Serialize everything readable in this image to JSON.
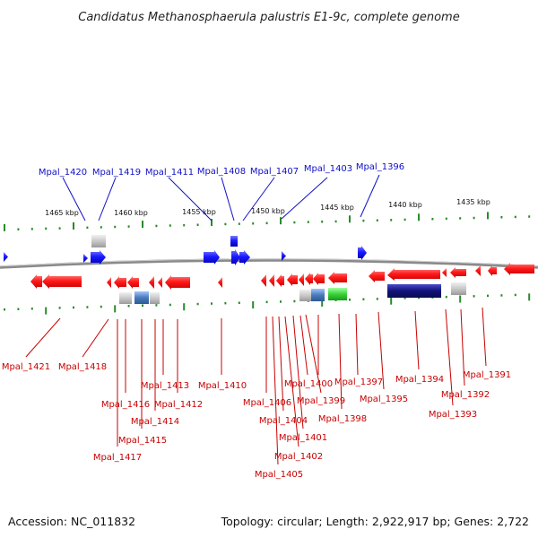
{
  "title": "Candidatus Methanosphaerula palustris E1-9c, complete genome",
  "accession": "Accession: NC_011832",
  "topology": "Topology: circular; Length: 2,922,917 bp; Genes: 2,722",
  "colors": {
    "forward_gene": "#1a1aff",
    "reverse_gene": "#ff1a1a",
    "top_label": "#1010c8",
    "bottom_label": "#c80000",
    "tick": "#2a8a2a",
    "backbone": "#8a8a8a",
    "rna_grey": "#c8c8c8",
    "rna_blue": "#4a7ab8",
    "rna_green": "#3ad23a",
    "feature_navy": "#12127a"
  },
  "kbp_labels": [
    "1465 kbp",
    "1460 kbp",
    "1455 kbp",
    "1450 kbp",
    "1445 kbp",
    "1440 kbp",
    "1435 kbp"
  ],
  "top_gene_labels": [
    "Mpal_1420",
    "Mpal_1419",
    "Mpal_1411",
    "Mpal_1408",
    "Mpal_1407",
    "Mpal_1403",
    "Mpal_1396"
  ],
  "bottom_gene_labels": [
    "Mpal_1421",
    "Mpal_1418",
    "Mpal_1416",
    "Mpal_1417",
    "Mpal_1415",
    "Mpal_1414",
    "Mpal_1413",
    "Mpal_1412",
    "Mpal_1410",
    "Mpal_1406",
    "Mpal_1405",
    "Mpal_1404",
    "Mpal_1402",
    "Mpal_1401",
    "Mpal_1400",
    "Mpal_1399",
    "Mpal_1398",
    "Mpal_1397",
    "Mpal_1395",
    "Mpal_1394",
    "Mpal_1393",
    "Mpal_1392",
    "Mpal_1391"
  ]
}
